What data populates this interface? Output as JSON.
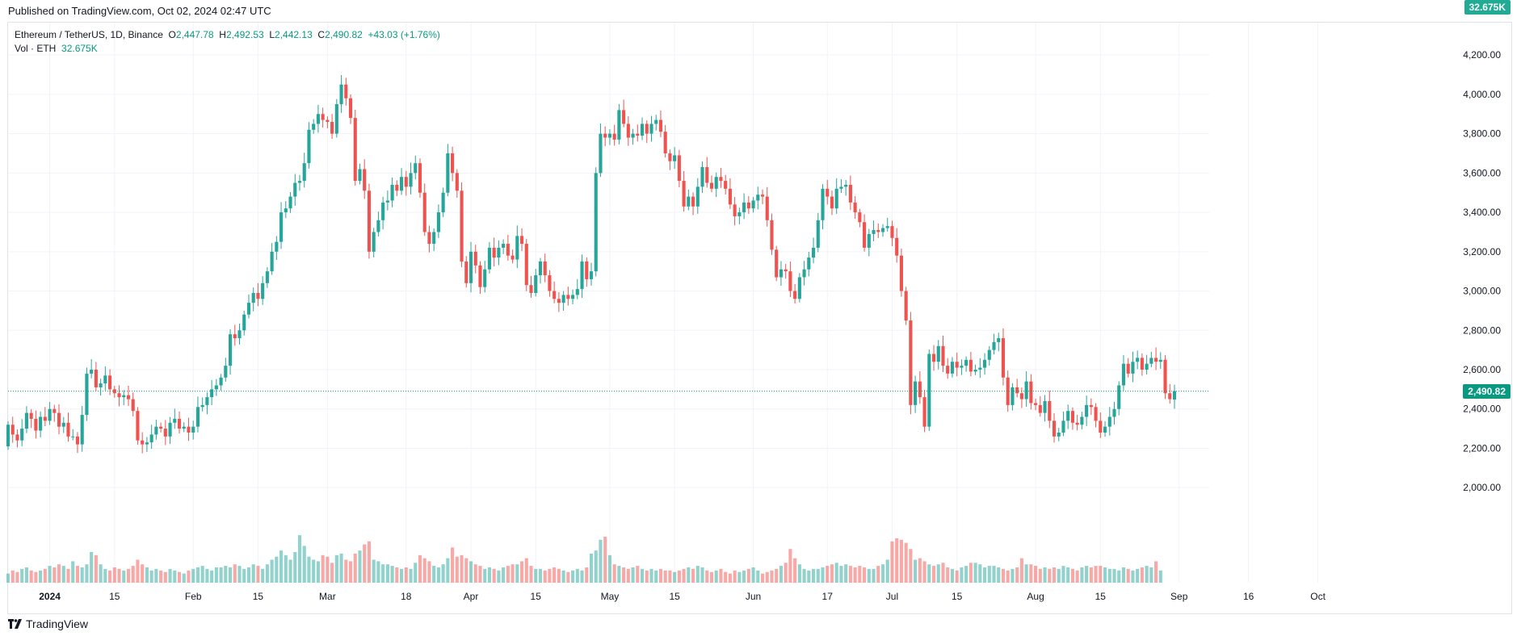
{
  "header": {
    "published": "Published on TradingView.com, Oct 02, 2024 02:47 UTC"
  },
  "legend": {
    "symbol": "Ethereum / TetherUS, 1D, Binance",
    "o_label": "O",
    "o": "2,447.78",
    "h_label": "H",
    "h": "2,492.53",
    "l_label": "L",
    "l": "2,442.13",
    "c_label": "C",
    "c": "2,490.82",
    "change": "+43.03 (+1.76%)",
    "vol_label": "Vol · ETH",
    "vol": "32.675K"
  },
  "price_tag": "2,490.82",
  "volume_tag": "32.675K",
  "footer": {
    "brand": "TradingView"
  },
  "colors": {
    "up": "#26a69a",
    "down": "#ef5350",
    "up_text": "#089981",
    "grid": "#f0f3fa"
  },
  "chart_data": {
    "type": "candlestick",
    "title": "Ethereum / TetherUS, 1D, Binance",
    "ylim": [
      2050,
      4250
    ],
    "y_ticks": [
      2000,
      2200,
      2400,
      2600,
      2800,
      3000,
      3200,
      3400,
      3600,
      3800,
      4000,
      4200
    ],
    "y_tick_labels": [
      "2,000.00",
      "2,200.00",
      "2,400.00",
      "2,600.00",
      "2,800.00",
      "3,000.00",
      "3,200.00",
      "3,400.00",
      "3,600.00",
      "3,800.00",
      "4,000.00",
      "4,200.00"
    ],
    "x_ticks": [
      {
        "label": "2024",
        "date": "2024-01-01",
        "bold": true
      },
      {
        "label": "15",
        "date": "2024-01-15"
      },
      {
        "label": "Feb",
        "date": "2024-02-01"
      },
      {
        "label": "15",
        "date": "2024-02-15"
      },
      {
        "label": "Mar",
        "date": "2024-03-01"
      },
      {
        "label": "18",
        "date": "2024-03-18"
      },
      {
        "label": "Apr",
        "date": "2024-04-01"
      },
      {
        "label": "15",
        "date": "2024-04-15"
      },
      {
        "label": "May",
        "date": "2024-05-01"
      },
      {
        "label": "15",
        "date": "2024-05-15"
      },
      {
        "label": "Jun",
        "date": "2024-06-01"
      },
      {
        "label": "17",
        "date": "2024-06-17"
      },
      {
        "label": "Jul",
        "date": "2024-07-01"
      },
      {
        "label": "15",
        "date": "2024-07-15"
      },
      {
        "label": "Aug",
        "date": "2024-08-01"
      },
      {
        "label": "15",
        "date": "2024-08-15"
      },
      {
        "label": "Sep",
        "date": "2024-09-01"
      },
      {
        "label": "16",
        "date": "2024-09-16"
      },
      {
        "label": "Oct",
        "date": "2024-10-01"
      }
    ],
    "last_price": 2490.82,
    "series_start_date": "2023-12-23",
    "close": [
      2320,
      2270,
      2240,
      2300,
      2380,
      2350,
      2290,
      2360,
      2340,
      2400,
      2380,
      2310,
      2330,
      2260,
      2260,
      2220,
      2370,
      2580,
      2600,
      2510,
      2530,
      2570,
      2500,
      2480,
      2460,
      2470,
      2450,
      2390,
      2240,
      2220,
      2230,
      2270,
      2310,
      2300,
      2260,
      2330,
      2350,
      2300,
      2310,
      2280,
      2310,
      2410,
      2420,
      2460,
      2500,
      2520,
      2560,
      2620,
      2780,
      2760,
      2800,
      2880,
      2940,
      2990,
      2960,
      3040,
      3100,
      3200,
      3250,
      3400,
      3420,
      3480,
      3550,
      3560,
      3650,
      3820,
      3850,
      3900,
      3870,
      3860,
      3800,
      3950,
      4050,
      3980,
      3880,
      3560,
      3620,
      3510,
      3200,
      3300,
      3360,
      3450,
      3460,
      3540,
      3510,
      3580,
      3530,
      3600,
      3650,
      3500,
      3300,
      3240,
      3300,
      3400,
      3500,
      3700,
      3600,
      3510,
      3150,
      3040,
      3200,
      3130,
      3020,
      3110,
      3220,
      3170,
      3220,
      3240,
      3180,
      3160,
      3280,
      3240,
      3030,
      2990,
      3080,
      3150,
      3080,
      3000,
      2960,
      2940,
      2980,
      2960,
      2980,
      3010,
      3150,
      3060,
      3100,
      3600,
      3800,
      3780,
      3800,
      3770,
      3920,
      3850,
      3780,
      3800,
      3790,
      3850,
      3800,
      3850,
      3870,
      3810,
      3700,
      3660,
      3690,
      3560,
      3430,
      3480,
      3430,
      3530,
      3630,
      3550,
      3520,
      3580,
      3560,
      3520,
      3440,
      3380,
      3400,
      3450,
      3420,
      3460,
      3490,
      3480,
      3360,
      3210,
      3070,
      3110,
      3100,
      3000,
      2960,
      3070,
      3110,
      3170,
      3220,
      3360,
      3520,
      3480,
      3420,
      3520,
      3530,
      3540,
      3450,
      3400,
      3350,
      3220,
      3290,
      3310,
      3300,
      3320,
      3330,
      3270,
      3180,
      3000,
      2850,
      2420,
      2540,
      2460,
      2310,
      2680,
      2640,
      2720,
      2620,
      2580,
      2640,
      2610,
      2620,
      2650,
      2590,
      2600,
      2610,
      2650,
      2700,
      2740,
      2760,
      2560,
      2420,
      2510,
      2480,
      2450,
      2540,
      2430,
      2420,
      2380,
      2440,
      2340,
      2260,
      2280,
      2340,
      2390,
      2330,
      2320,
      2360,
      2420,
      2410,
      2340,
      2280,
      2310,
      2360,
      2400,
      2520,
      2630,
      2580,
      2640,
      2660,
      2600,
      2630,
      2660,
      2640,
      2650,
      2480,
      2450,
      2490.82
    ],
    "open": [
      2210,
      2320,
      2270,
      2240,
      2300,
      2380,
      2350,
      2290,
      2360,
      2340,
      2400,
      2380,
      2310,
      2330,
      2260,
      2260,
      2220,
      2370,
      2580,
      2600,
      2510,
      2530,
      2570,
      2500,
      2480,
      2460,
      2470,
      2450,
      2390,
      2240,
      2220,
      2230,
      2270,
      2310,
      2300,
      2260,
      2330,
      2350,
      2300,
      2310,
      2280,
      2310,
      2410,
      2420,
      2460,
      2500,
      2520,
      2560,
      2620,
      2780,
      2760,
      2800,
      2880,
      2940,
      2990,
      2960,
      3040,
      3100,
      3200,
      3250,
      3400,
      3420,
      3480,
      3550,
      3560,
      3650,
      3820,
      3850,
      3900,
      3870,
      3860,
      3800,
      3950,
      4050,
      3980,
      3880,
      3560,
      3620,
      3510,
      3200,
      3300,
      3360,
      3450,
      3460,
      3540,
      3510,
      3580,
      3530,
      3600,
      3650,
      3500,
      3300,
      3240,
      3300,
      3400,
      3500,
      3700,
      3600,
      3510,
      3150,
      3040,
      3200,
      3130,
      3020,
      3110,
      3220,
      3170,
      3220,
      3240,
      3180,
      3160,
      3280,
      3240,
      3030,
      2990,
      3080,
      3150,
      3080,
      3000,
      2960,
      2940,
      2980,
      2960,
      2980,
      3010,
      3150,
      3060,
      3100,
      3600,
      3800,
      3780,
      3800,
      3770,
      3920,
      3850,
      3780,
      3800,
      3790,
      3850,
      3800,
      3850,
      3870,
      3810,
      3700,
      3660,
      3690,
      3560,
      3430,
      3480,
      3430,
      3530,
      3630,
      3550,
      3520,
      3580,
      3560,
      3520,
      3440,
      3380,
      3400,
      3450,
      3420,
      3460,
      3490,
      3480,
      3360,
      3210,
      3070,
      3110,
      3100,
      3000,
      2960,
      3070,
      3110,
      3170,
      3220,
      3360,
      3520,
      3480,
      3420,
      3520,
      3530,
      3540,
      3450,
      3400,
      3350,
      3220,
      3290,
      3310,
      3300,
      3320,
      3330,
      3270,
      3180,
      3000,
      2850,
      2420,
      2540,
      2460,
      2310,
      2680,
      2640,
      2720,
      2620,
      2580,
      2640,
      2610,
      2620,
      2650,
      2590,
      2600,
      2610,
      2650,
      2700,
      2740,
      2760,
      2560,
      2420,
      2510,
      2480,
      2450,
      2540,
      2430,
      2420,
      2380,
      2440,
      2340,
      2260,
      2280,
      2340,
      2390,
      2330,
      2320,
      2360,
      2420,
      2410,
      2340,
      2280,
      2310,
      2360,
      2400,
      2520,
      2630,
      2580,
      2640,
      2660,
      2600,
      2630,
      2660,
      2640,
      2650,
      2480,
      2447.78
    ],
    "volume_relative": [
      0.3,
      0.4,
      0.35,
      0.45,
      0.5,
      0.4,
      0.35,
      0.4,
      0.45,
      0.55,
      0.5,
      0.6,
      0.55,
      0.45,
      0.7,
      0.55,
      0.5,
      0.6,
      1.0,
      0.9,
      0.6,
      0.45,
      0.4,
      0.5,
      0.45,
      0.4,
      0.45,
      0.55,
      0.75,
      0.6,
      0.5,
      0.4,
      0.45,
      0.4,
      0.35,
      0.45,
      0.4,
      0.35,
      0.3,
      0.4,
      0.45,
      0.5,
      0.55,
      0.45,
      0.4,
      0.5,
      0.5,
      0.55,
      0.5,
      0.6,
      0.55,
      0.45,
      0.5,
      0.6,
      0.55,
      0.45,
      0.6,
      0.75,
      0.85,
      1.05,
      0.9,
      0.75,
      1.0,
      1.55,
      1.2,
      0.85,
      0.75,
      0.7,
      0.9,
      0.85,
      0.65,
      0.9,
      0.95,
      0.75,
      0.7,
      0.95,
      1.05,
      1.25,
      1.35,
      0.75,
      0.7,
      0.6,
      0.6,
      0.55,
      0.5,
      0.45,
      0.5,
      0.45,
      0.65,
      0.9,
      0.8,
      0.7,
      0.55,
      0.5,
      0.6,
      0.8,
      1.15,
      0.85,
      0.9,
      0.8,
      0.7,
      0.6,
      0.55,
      0.45,
      0.5,
      0.45,
      0.4,
      0.5,
      0.55,
      0.6,
      0.6,
      0.7,
      0.8,
      0.55,
      0.45,
      0.45,
      0.4,
      0.45,
      0.5,
      0.45,
      0.4,
      0.35,
      0.4,
      0.45,
      0.4,
      0.5,
      0.95,
      1.05,
      1.4,
      1.5,
      0.9,
      0.6,
      0.55,
      0.5,
      0.45,
      0.5,
      0.55,
      0.45,
      0.4,
      0.45,
      0.4,
      0.45,
      0.4,
      0.4,
      0.35,
      0.4,
      0.45,
      0.5,
      0.45,
      0.55,
      0.5,
      0.4,
      0.35,
      0.4,
      0.45,
      0.35,
      0.3,
      0.4,
      0.35,
      0.4,
      0.45,
      0.5,
      0.4,
      0.3,
      0.35,
      0.4,
      0.45,
      0.55,
      0.65,
      1.1,
      0.8,
      0.6,
      0.45,
      0.4,
      0.45,
      0.45,
      0.5,
      0.55,
      0.6,
      0.65,
      0.55,
      0.6,
      0.55,
      0.5,
      0.55,
      0.5,
      0.45,
      0.45,
      0.55,
      0.6,
      0.75,
      1.35,
      1.45,
      1.4,
      1.3,
      1.1,
      0.75,
      0.8,
      0.7,
      0.6,
      0.55,
      0.6,
      0.65,
      0.5,
      0.45,
      0.4,
      0.5,
      0.55,
      0.65,
      0.65,
      0.6,
      0.5,
      0.55,
      0.55,
      0.5,
      0.45,
      0.4,
      0.45,
      0.5,
      0.8,
      0.6,
      0.6,
      0.55,
      0.45,
      0.5,
      0.45,
      0.5,
      0.45,
      0.55,
      0.5,
      0.45,
      0.4,
      0.5,
      0.55,
      0.5,
      0.55,
      0.55,
      0.5,
      0.45,
      0.45,
      0.4,
      0.5,
      0.45,
      0.4,
      0.45,
      0.5,
      0.55,
      0.5,
      0.7,
      0.4
    ]
  }
}
